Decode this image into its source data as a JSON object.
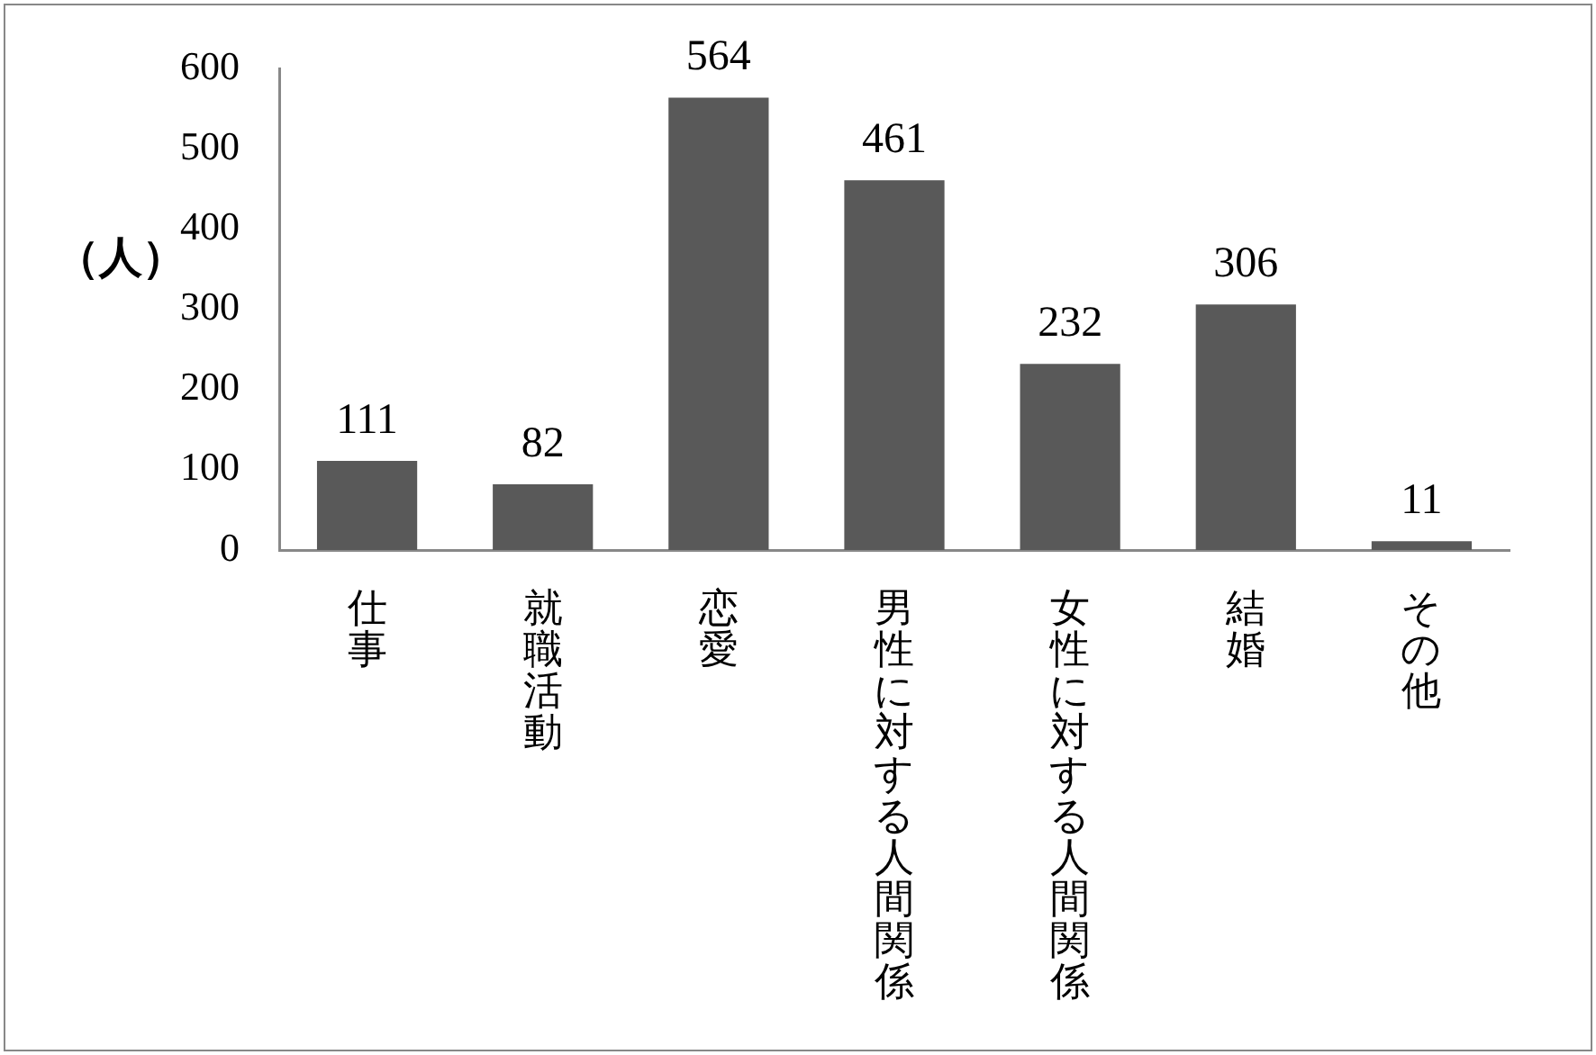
{
  "chart_data": {
    "type": "bar",
    "ylabel": "（人）",
    "categories": [
      "仕事",
      "就職活動",
      "恋愛",
      "男性に対する人間関係",
      "女性に対する人間関係",
      "結婚",
      "その他"
    ],
    "values": [
      111,
      82,
      564,
      461,
      232,
      306,
      11
    ],
    "color": "#595959",
    "ylim": [
      0,
      600
    ],
    "yticks": [
      0,
      100,
      200,
      300,
      400,
      500,
      600
    ],
    "data_labels": true
  }
}
